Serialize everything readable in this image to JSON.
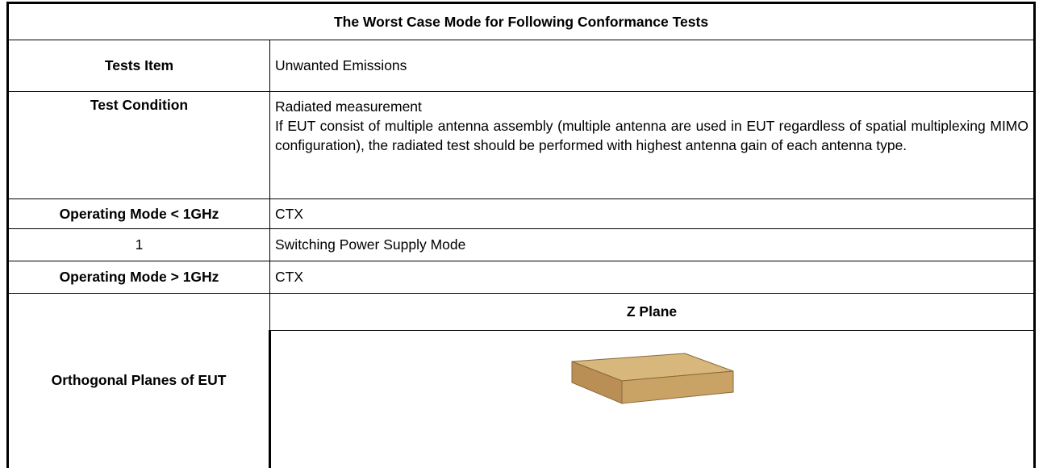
{
  "table": {
    "title": "The Worst Case Mode for Following Conformance Tests",
    "rows": [
      {
        "label": "Tests Item",
        "value": "Unwanted Emissions"
      },
      {
        "label": "Test Condition",
        "value": [
          "Radiated measurement",
          "If EUT consist of multiple antenna assembly (multiple antenna are used in EUT regardless of spatial multiplexing MIMO configuration), the radiated test should be performed with highest antenna gain of each antenna type."
        ]
      },
      {
        "label": "Operating Mode < 1GHz",
        "value": "CTX"
      },
      {
        "label": "1",
        "value": "Switching Power Supply Mode"
      },
      {
        "label": "Operating Mode > 1GHz",
        "value": "CTX"
      }
    ],
    "planes": {
      "label": "Orthogonal Planes of EUT",
      "header": "Z Plane"
    }
  }
}
